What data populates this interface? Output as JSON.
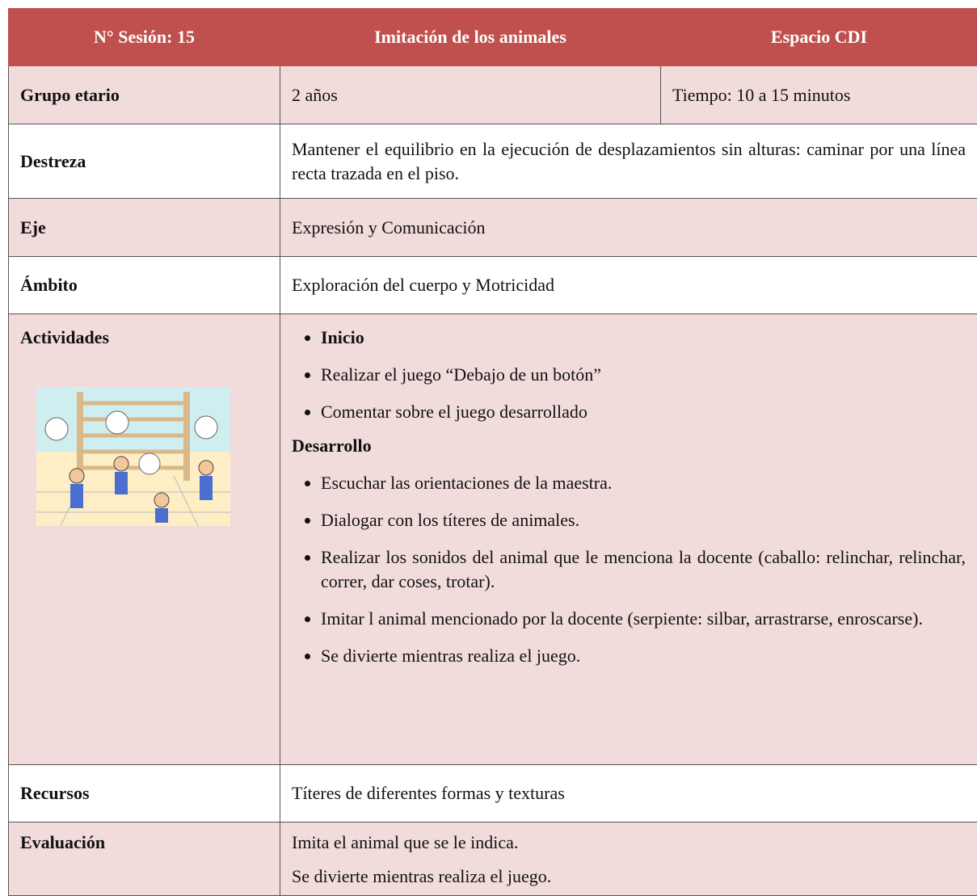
{
  "header": {
    "session": "N° Sesión: 15",
    "title": "Imitación de los animales",
    "space": "Espacio CDI"
  },
  "rows": {
    "group": {
      "label": "Grupo etario",
      "age": "2 años",
      "time": "Tiempo: 10 a 15 minutos"
    },
    "skill": {
      "label": "Destreza",
      "text": "Mantener el equilibrio en la ejecución de desplazamientos sin alturas: caminar por una línea recta trazada en el piso."
    },
    "axis": {
      "label": "Eje",
      "text": "Expresión y Comunicación"
    },
    "scope": {
      "label": "Ámbito",
      "text": "Exploración del cuerpo y Motricidad"
    },
    "activities": {
      "label": "Actividades",
      "start_heading": "Inicio",
      "start_items": [
        "Realizar el juego “Debajo de un botón”",
        "Comentar sobre el juego desarrollado"
      ],
      "development_heading": "Desarrollo",
      "development_items": [
        "Escuchar las orientaciones de la maestra.",
        "Dialogar con los títeres de animales.",
        "Realizar los sonidos del animal que le menciona la docente (caballo: relinchar, relinchar, correr, dar coses, trotar).",
        "Imitar l animal mencionado por la docente (serpiente: silbar, arrastrarse, enroscarse).",
        "Se divierte mientras realiza el juego."
      ]
    },
    "resources": {
      "label": "Recursos",
      "text": "Títeres de diferentes formas y texturas"
    },
    "evaluation": {
      "label": "Evaluación",
      "lines": [
        "Imita el animal que se le indica.",
        "Se divierte mientras realiza el juego."
      ]
    }
  }
}
